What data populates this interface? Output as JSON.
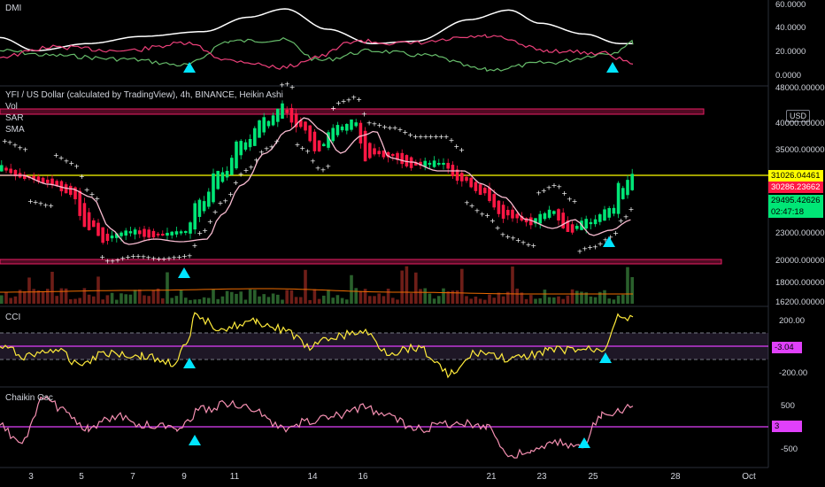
{
  "panels": {
    "dmi": {
      "title": "DMI",
      "axis": [
        "60.0000",
        "40.0000",
        "20.0000",
        "0.0000"
      ]
    },
    "main": {
      "title": "YFI / US Dollar (calculated by TradingView), 4h, BINANCE, Heikin Ashi",
      "indicators": [
        "Vol",
        "SAR",
        "SMA"
      ],
      "currency": "USD",
      "axis": [
        "48000.00000",
        "40000.00000",
        "35000.00000",
        "23000.00000",
        "20000.00000",
        "18000.00000",
        "16200.00000"
      ],
      "tags": [
        {
          "text": "31026.04461",
          "bg": "#ffff00",
          "fg": "#000000"
        },
        {
          "text": "30286.23662",
          "bg": "#ff1744",
          "fg": "#ffffff"
        },
        {
          "text": "29495.42626",
          "bg": "#00e676",
          "fg": "#000000"
        },
        {
          "text": "02:47:18",
          "bg": "#00e676",
          "fg": "#000000"
        }
      ]
    },
    "cci": {
      "title": "CCI",
      "axis": [
        "200.00",
        "-200.00"
      ],
      "tag": "-3.04"
    },
    "chaikin": {
      "title": "Chaikin Osc",
      "axis": [
        "500",
        "-500"
      ],
      "tag": "3"
    }
  },
  "x_axis": [
    "3",
    "5",
    "7",
    "9",
    "11",
    "14",
    "16",
    "21",
    "23",
    "25",
    "28",
    "Oct"
  ],
  "colors": {
    "bull": "#00e676",
    "bear": "#ff1744",
    "sma": "#f8bbd0",
    "level": "#ffff00",
    "zone": "#e91e63",
    "cci": "#ffeb3b",
    "chaikin": "#f48fb1",
    "magenta": "#e040fb",
    "marker": "#00e5ff"
  }
}
